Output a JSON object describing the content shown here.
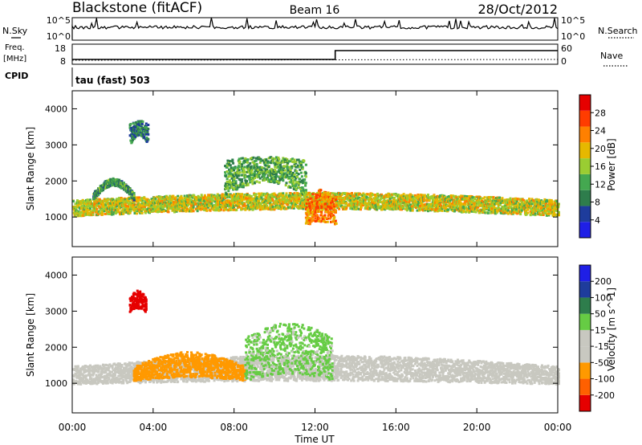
{
  "header": {
    "station": "Blackstone (fitACF)",
    "beam": "Beam 16",
    "date": "28/Oct/2012"
  },
  "status_panels": {
    "nsky_label": "N.Sky",
    "nsky_ticks": [
      "10^5",
      "10^0"
    ],
    "nsearch_label": "N.Search",
    "freq_label": "Freq.",
    "freq_unit": "[MHz]",
    "freq_ticks": [
      "18",
      "8"
    ],
    "nave_label": "Nave",
    "nave_ticks": [
      "60",
      "0"
    ],
    "cpid_label": "CPID",
    "cpid_value": "tau (fast) 503"
  },
  "colors": {
    "power": [
      "#1f1fe6",
      "#1e3c9c",
      "#2e7d4c",
      "#44a850",
      "#9acd32",
      "#e6b800",
      "#ff8000",
      "#ff3c00",
      "#e60000"
    ],
    "velocity": [
      "#e60000",
      "#ff6000",
      "#ff9900",
      "#c8c8c0",
      "#c8c8c0",
      "#66cc44",
      "#2e7d4c",
      "#1e3c9c",
      "#1f1fe6"
    ]
  },
  "chart_data": [
    {
      "type": "heatmap",
      "panel": "power",
      "ylabel": "Slant Range [km]",
      "ylim": [
        180,
        4500
      ],
      "yticks": [
        "1000",
        "2000",
        "3000",
        "4000"
      ],
      "colorbar_label": "Power [dB]",
      "colorbar_ticks": [
        "4",
        "8",
        "12",
        "16",
        "20",
        "24",
        "28"
      ],
      "scatter_regions": [
        {
          "name": "band-main",
          "t": [
            0.0,
            24.0
          ],
          "r_low": [
            1050,
            1250
          ],
          "r_high": [
            1500,
            1700
          ],
          "value_center": 20
        },
        {
          "name": "arc-morning",
          "t": [
            1.0,
            3.0
          ],
          "r_low": [
            1500,
            1900
          ],
          "r_high": [
            1700,
            2100
          ],
          "value_center": 12
        },
        {
          "name": "cluster-0330",
          "t": [
            2.8,
            3.7
          ],
          "r_low": [
            3000,
            3300
          ],
          "r_high": [
            3600,
            3700
          ],
          "value_center": 10
        },
        {
          "name": "arc-0800",
          "t": [
            7.5,
            11.5
          ],
          "r_low": [
            1600,
            2000
          ],
          "r_high": [
            2600,
            2700
          ],
          "value_center": 14
        },
        {
          "name": "dip-1230",
          "t": [
            11.5,
            13.0
          ],
          "r_low": [
            800,
            900
          ],
          "r_high": [
            1500,
            1800
          ],
          "value_center": 26
        }
      ]
    },
    {
      "type": "heatmap",
      "panel": "velocity",
      "ylabel": "Slant Range [km]",
      "ylim": [
        180,
        4500
      ],
      "yticks": [
        "1000",
        "2000",
        "3000",
        "4000"
      ],
      "colorbar_label": "Velocity [m s^-1]",
      "colorbar_ticks": [
        "200",
        "100",
        "50",
        "15",
        "-15",
        "-50",
        "-100",
        "-200"
      ],
      "xlabel": "Time UT",
      "xticks": [
        "00:00",
        "04:00",
        "08:00",
        "12:00",
        "16:00",
        "20:00",
        "00:00"
      ],
      "xlim": [
        0,
        24
      ],
      "scatter_regions": [
        {
          "name": "ground-scatter",
          "t": [
            0.0,
            24.0
          ],
          "r_low": [
            1000,
            1100
          ],
          "r_high": [
            1500,
            1800
          ],
          "value_center": 0
        },
        {
          "name": "negative-flow",
          "t": [
            3.0,
            8.5
          ],
          "r_low": [
            1100,
            1200
          ],
          "r_high": [
            1500,
            1900
          ],
          "value_center": -60
        },
        {
          "name": "strong-negative",
          "t": [
            2.8,
            3.6
          ],
          "r_low": [
            3000,
            3100
          ],
          "r_high": [
            3400,
            3600
          ],
          "value_center": -200
        },
        {
          "name": "positive-flow",
          "t": [
            8.5,
            12.8
          ],
          "r_low": [
            1100,
            1300
          ],
          "r_high": [
            2300,
            2700
          ],
          "value_center": 40
        }
      ]
    }
  ]
}
